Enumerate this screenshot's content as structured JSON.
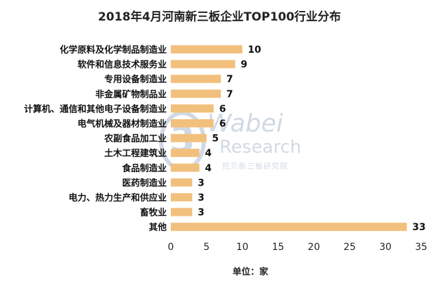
{
  "chart_data": {
    "type": "bar",
    "orientation": "horizontal",
    "title": "2018年4月河南新三板企业TOP100行业分布",
    "categories": [
      "化学原料及化学制品制造业",
      "软件和信息技术服务业",
      "专用设备制造业",
      "非金属矿物制品业",
      "计算机、通信和其他电子设备制造业",
      "电气机械及器材制造业",
      "农副食品加工业",
      "土木工程建筑业",
      "食品制造业",
      "医药制造业",
      "电力、热力生产和供应业",
      "畜牧业",
      "其他"
    ],
    "values": [
      10,
      9,
      7,
      7,
      6,
      6,
      5,
      4,
      4,
      3,
      3,
      3,
      33
    ],
    "xlim": [
      0,
      35
    ],
    "xticks": [
      0,
      5,
      10,
      15,
      20,
      25,
      30,
      35
    ],
    "xlabel": "单位：家",
    "bar_color": "#F2C07D",
    "grid": false
  },
  "watermark": {
    "logo_text": "3",
    "name": "Wabei",
    "sub": "Research",
    "cn": "挖贝新三板研究院"
  }
}
